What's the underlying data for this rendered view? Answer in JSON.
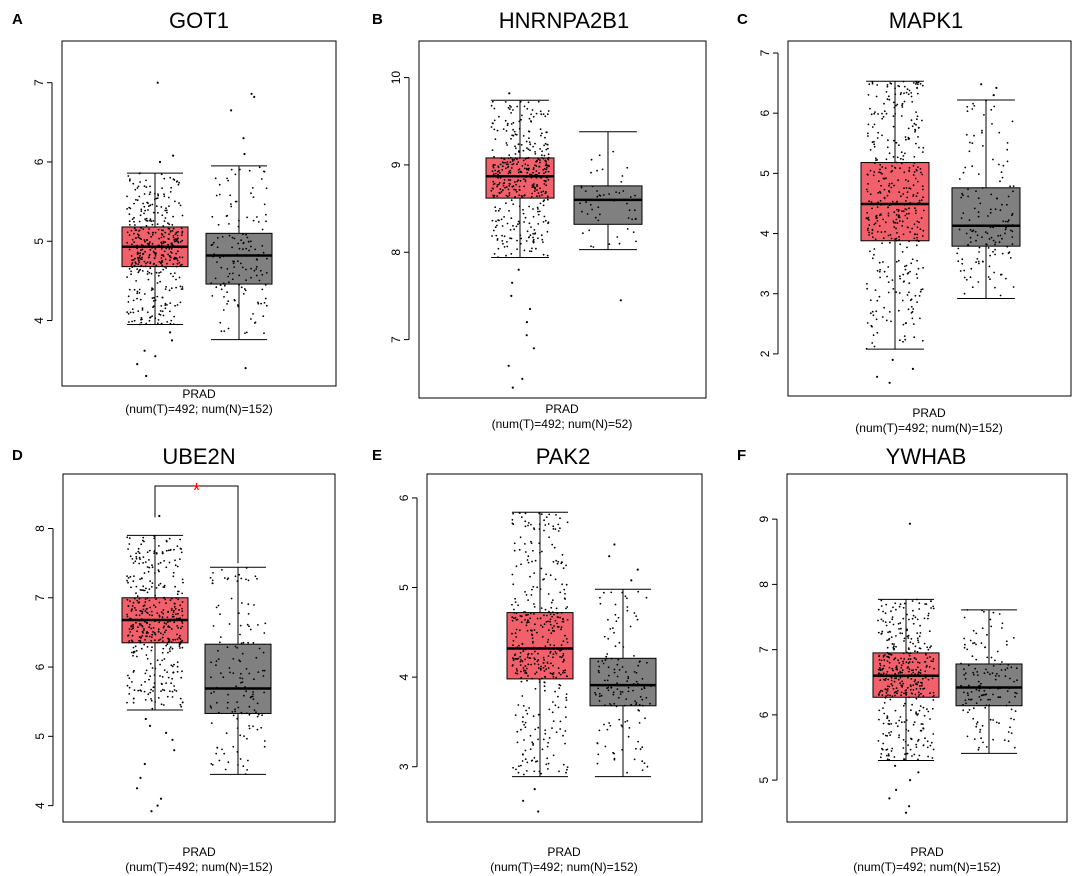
{
  "colors": {
    "tumor": "#f2606b",
    "normal": "#808080",
    "points": "#000000",
    "significance": "#ff0000"
  },
  "chart_data": [
    {
      "panel": "A",
      "type": "box",
      "title": "GOT1",
      "xlabel": "PRAD",
      "xsublabel": "(num(T)=492; num(N)=152)",
      "ylim": [
        3.25,
        7.45
      ],
      "yticks": [
        4,
        5,
        6,
        7
      ],
      "groups": [
        {
          "name": "T",
          "n": 492,
          "min": 3.95,
          "q1": 4.68,
          "median": 4.93,
          "q3": 5.18,
          "max": 5.86,
          "outliers": [
            3.3,
            3.45,
            3.55,
            3.62,
            3.75,
            3.85,
            6.0,
            6.08,
            7.0
          ]
        },
        {
          "name": "N",
          "n": 152,
          "min": 3.76,
          "q1": 4.46,
          "median": 4.82,
          "q3": 5.1,
          "max": 5.95,
          "outliers": [
            3.4,
            6.1,
            6.3,
            6.65,
            6.82,
            6.86
          ]
        }
      ],
      "significance": false
    },
    {
      "panel": "B",
      "type": "box",
      "title": "HNRNPA2B1",
      "xlabel": "PRAD",
      "xsublabel": "(num(T)=492; num(N)=52)",
      "ylim": [
        6.4,
        10.35
      ],
      "yticks": [
        7,
        8,
        9,
        10
      ],
      "groups": [
        {
          "name": "T",
          "n": 492,
          "min": 7.94,
          "q1": 8.62,
          "median": 8.87,
          "q3": 9.08,
          "max": 9.74,
          "outliers": [
            6.45,
            6.55,
            6.7,
            6.9,
            7.05,
            7.2,
            7.35,
            7.5,
            7.65,
            7.8,
            9.82
          ]
        },
        {
          "name": "N",
          "n": 52,
          "min": 8.03,
          "q1": 8.32,
          "median": 8.6,
          "q3": 8.76,
          "max": 9.38,
          "outliers": [
            7.45
          ]
        }
      ],
      "significance": false
    },
    {
      "panel": "C",
      "type": "box",
      "title": "MAPK1",
      "xlabel": "PRAD",
      "xsublabel": "(num(T)=492; num(N)=152)",
      "ylim": [
        1.4,
        7.1
      ],
      "yticks": [
        2,
        3,
        4,
        5,
        6,
        7
      ],
      "groups": [
        {
          "name": "T",
          "n": 492,
          "min": 2.08,
          "q1": 3.88,
          "median": 4.49,
          "q3": 5.18,
          "max": 6.53,
          "outliers": [
            1.52,
            1.62,
            1.75,
            1.9
          ]
        },
        {
          "name": "N",
          "n": 152,
          "min": 2.92,
          "q1": 3.79,
          "median": 4.13,
          "q3": 4.76,
          "max": 6.22,
          "outliers": [
            6.3,
            6.42,
            6.48
          ]
        }
      ],
      "significance": false
    },
    {
      "panel": "D",
      "type": "box",
      "title": "UBE2N",
      "xlabel": "PRAD",
      "xsublabel": "(num(T)=492; num(N)=152)",
      "ylim": [
        3.85,
        8.7
      ],
      "yticks": [
        4,
        5,
        6,
        7,
        8
      ],
      "groups": [
        {
          "name": "T",
          "n": 492,
          "min": 5.38,
          "q1": 6.35,
          "median": 6.68,
          "q3": 7.0,
          "max": 7.9,
          "outliers": [
            3.92,
            4.0,
            4.1,
            4.25,
            4.4,
            4.6,
            4.8,
            4.95,
            5.05,
            5.15,
            5.25,
            8.18
          ]
        },
        {
          "name": "N",
          "n": 152,
          "min": 4.45,
          "q1": 5.33,
          "median": 5.69,
          "q3": 6.33,
          "max": 7.44,
          "outliers": []
        }
      ],
      "significance": true,
      "significance_label": "*"
    },
    {
      "panel": "E",
      "type": "box",
      "title": "PAK2",
      "xlabel": "PRAD",
      "xsublabel": "(num(T)=492; num(N)=152)",
      "ylim": [
        2.45,
        6.2
      ],
      "yticks": [
        3,
        4,
        5,
        6
      ],
      "groups": [
        {
          "name": "T",
          "n": 492,
          "min": 2.89,
          "q1": 3.98,
          "median": 4.32,
          "q3": 4.72,
          "max": 5.84,
          "outliers": [
            2.5,
            2.62,
            2.75
          ]
        },
        {
          "name": "N",
          "n": 152,
          "min": 2.89,
          "q1": 3.68,
          "median": 3.91,
          "q3": 4.21,
          "max": 4.98,
          "outliers": [
            5.08,
            5.2,
            5.35,
            5.48
          ]
        }
      ],
      "significance": false
    },
    {
      "panel": "F",
      "type": "box",
      "title": "YWHAB",
      "xlabel": "PRAD",
      "xsublabel": "(num(T)=492; num(N)=152)",
      "ylim": [
        4.45,
        9.6
      ],
      "yticks": [
        5,
        6,
        7,
        8,
        9
      ],
      "groups": [
        {
          "name": "T",
          "n": 492,
          "min": 5.3,
          "q1": 6.27,
          "median": 6.6,
          "q3": 6.95,
          "max": 7.77,
          "outliers": [
            4.5,
            4.6,
            4.72,
            4.85,
            5.0,
            5.12,
            5.22,
            8.93
          ]
        },
        {
          "name": "N",
          "n": 152,
          "min": 5.41,
          "q1": 6.14,
          "median": 6.42,
          "q3": 6.78,
          "max": 7.61,
          "outliers": []
        }
      ],
      "significance": false
    }
  ]
}
